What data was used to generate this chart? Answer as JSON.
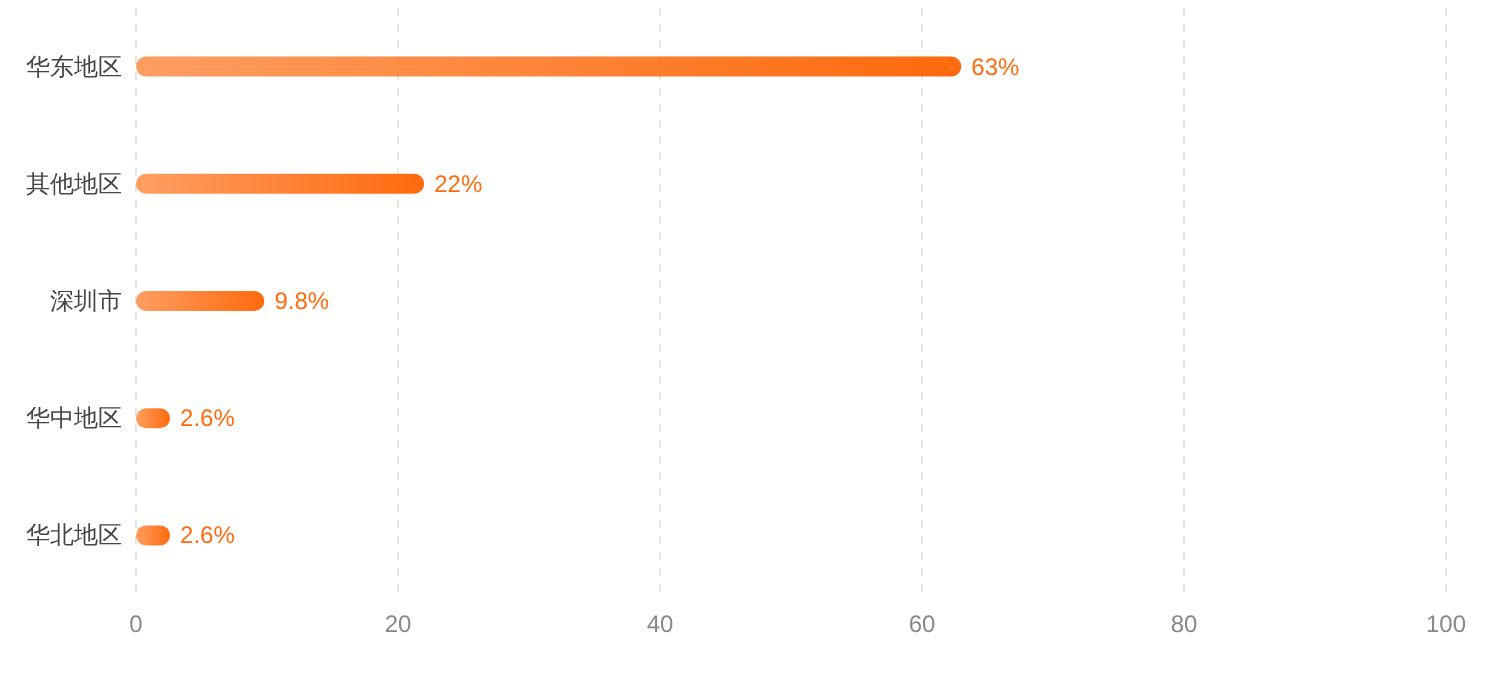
{
  "chart_data": {
    "type": "bar",
    "orientation": "horizontal",
    "categories": [
      "华东地区",
      "其他地区",
      "深圳市",
      "华中地区",
      "华北地区"
    ],
    "values": [
      63,
      22,
      9.8,
      2.6,
      2.6
    ],
    "value_labels": [
      "63%",
      "22%",
      "9.8%",
      "2.6%",
      "2.6%"
    ],
    "color": "#ff6a0d",
    "xlim": [
      0,
      100
    ],
    "xticks": [
      0,
      20,
      40,
      60,
      80,
      100
    ],
    "grid": "x"
  }
}
